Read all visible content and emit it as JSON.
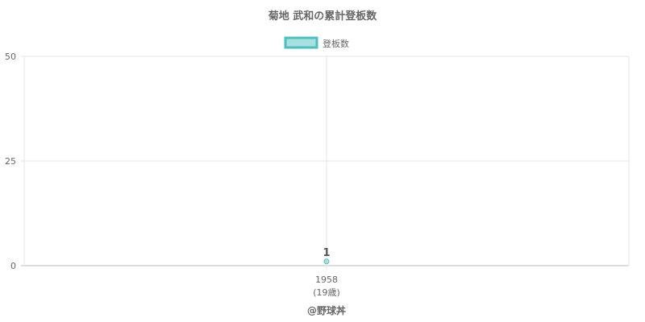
{
  "chart_data": {
    "type": "line",
    "title": "菊地 武和の累計登板数",
    "categories": [
      "1958"
    ],
    "category_sublabels": [
      "(19歳)"
    ],
    "series": [
      {
        "name": "登板数",
        "values": [
          1
        ]
      }
    ],
    "data_labels": [
      "1"
    ],
    "ylim": [
      0,
      50
    ],
    "yticks": [
      0,
      25,
      50
    ],
    "grid": true,
    "legend": "top",
    "colors": {
      "point_fill": "#a8e0e0",
      "point_stroke": "#4bc0c0",
      "grid": "#e6e6e6",
      "text": "#666666"
    }
  },
  "watermark": "@野球丼"
}
